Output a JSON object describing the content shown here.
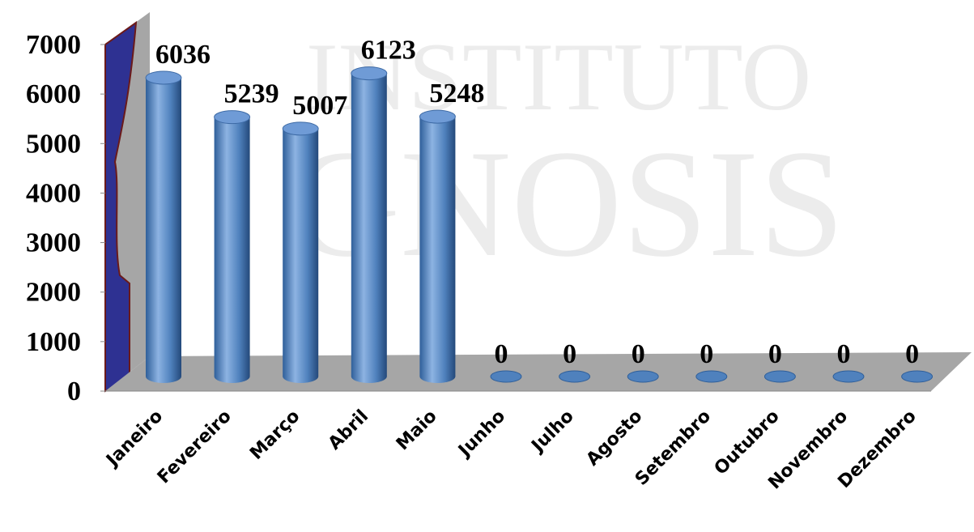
{
  "chart_data": {
    "type": "bar",
    "watermark": [
      "INSTITUTO",
      "GNOSIS"
    ],
    "categories": [
      "Janeiro",
      "Fevereiro",
      "Março",
      "Abril",
      "Maio",
      "Junho",
      "Julho",
      "Agosto",
      "Setembro",
      "Outubro",
      "Novembro",
      "Dezembro"
    ],
    "values": [
      6036,
      5239,
      5007,
      6123,
      5248,
      0,
      0,
      0,
      0,
      0,
      0,
      0
    ],
    "color": "#4f81bd",
    "ylim": [
      0,
      7000
    ],
    "yticks": [
      0,
      1000,
      2000,
      3000,
      4000,
      5000,
      6000,
      7000
    ]
  }
}
